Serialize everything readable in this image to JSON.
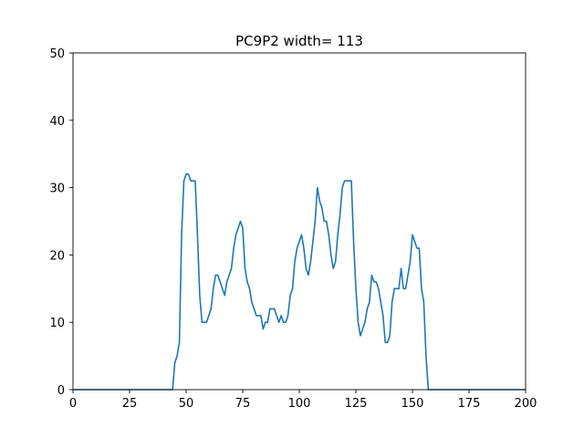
{
  "chart_data": {
    "type": "line",
    "title": "PC9P2 width= 113",
    "xlabel": "",
    "ylabel": "",
    "xlim": [
      0,
      200
    ],
    "ylim": [
      0,
      50
    ],
    "xticks": [
      0,
      25,
      50,
      75,
      100,
      125,
      150,
      175,
      200
    ],
    "yticks": [
      0,
      10,
      20,
      30,
      40,
      50
    ],
    "grid": false,
    "line_color": "#1f77b4",
    "series": [
      {
        "x": [
          0,
          44,
          45,
          46,
          47,
          48,
          49,
          50,
          51,
          52,
          53,
          54,
          55,
          56,
          57,
          58,
          59,
          60,
          61,
          62,
          63,
          64,
          65,
          66,
          67,
          68,
          69,
          70,
          71,
          72,
          73,
          74,
          75,
          76,
          77,
          78,
          79,
          80,
          81,
          82,
          83,
          84,
          85,
          86,
          87,
          88,
          89,
          90,
          91,
          92,
          93,
          94,
          95,
          96,
          97,
          98,
          99,
          100,
          101,
          102,
          103,
          104,
          105,
          106,
          107,
          108,
          109,
          110,
          111,
          112,
          113,
          114,
          115,
          116,
          117,
          118,
          119,
          120,
          121,
          122,
          123,
          124,
          125,
          126,
          127,
          128,
          129,
          130,
          131,
          132,
          133,
          134,
          135,
          136,
          137,
          138,
          139,
          140,
          141,
          142,
          143,
          144,
          145,
          146,
          147,
          148,
          149,
          150,
          151,
          152,
          153,
          154,
          155,
          156,
          157,
          158,
          200
        ],
        "y": [
          0,
          0,
          4,
          5,
          7,
          23,
          31,
          32,
          32,
          31,
          31,
          31,
          23,
          14,
          10,
          10,
          10,
          11,
          12,
          15,
          17,
          17,
          16,
          15,
          14,
          16,
          17,
          18,
          21,
          23,
          24,
          25,
          24,
          18,
          16,
          15,
          13,
          12,
          11,
          11,
          11,
          9,
          10,
          10,
          12,
          12,
          12,
          11,
          10,
          11,
          10,
          10,
          11,
          14,
          15,
          19,
          21,
          22,
          23,
          21,
          18,
          17,
          19,
          22,
          25,
          30,
          28,
          27,
          25,
          25,
          23,
          20,
          18,
          19,
          23,
          26,
          30,
          31,
          31,
          31,
          31,
          22,
          15,
          10,
          8,
          9,
          10,
          12,
          13,
          17,
          16,
          16,
          15,
          13,
          11,
          7,
          7,
          8,
          13,
          15,
          15,
          15,
          18,
          15,
          15,
          17,
          19,
          23,
          22,
          21,
          21,
          15,
          13,
          5,
          0,
          0,
          0
        ]
      }
    ]
  }
}
